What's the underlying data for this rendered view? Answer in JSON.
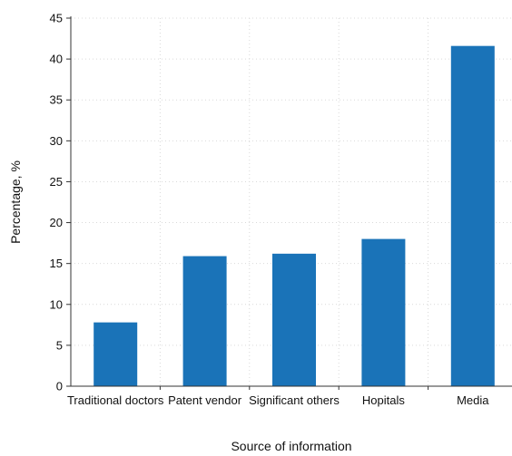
{
  "chart_data": {
    "type": "bar",
    "categories": [
      "Traditional doctors",
      "Patent vendor",
      "Significant others",
      "Hopitals",
      "Media"
    ],
    "values": [
      7.8,
      15.9,
      16.2,
      18.0,
      41.6
    ],
    "xlabel": "Source of information",
    "ylabel": "Percentage, %",
    "ylim": [
      0,
      45
    ],
    "yticks": [
      0,
      5,
      10,
      15,
      20,
      25,
      30,
      35,
      40,
      45
    ],
    "grid": true,
    "legend": "none",
    "colors": {
      "bar": "#1a73b8",
      "axis": "#333333",
      "grid": "#d9d9d9"
    }
  }
}
